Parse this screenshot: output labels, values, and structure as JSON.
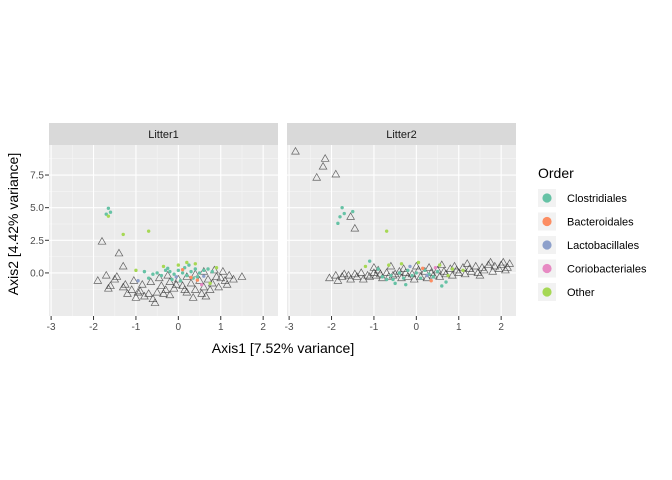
{
  "chart_data": {
    "type": "scatter",
    "xlabel": "Axis1 [7.52% variance]",
    "ylabel": "Axis2 [4.42% variance]",
    "xlim": [
      -3.05,
      2.35
    ],
    "ylim": [
      -3.3,
      9.8
    ],
    "x_ticks": [
      "-3",
      "-2",
      "-1",
      "0",
      "1",
      "2"
    ],
    "x_tick_values": [
      -3,
      -2,
      -1,
      0,
      1,
      2
    ],
    "y_ticks": [
      "0.0",
      "2.5",
      "5.0",
      "7.5"
    ],
    "y_tick_values": [
      0,
      2.5,
      5,
      7.5
    ],
    "grid": true,
    "legend": {
      "title": "Order",
      "placement": "right",
      "items": [
        {
          "label": "Clostridiales",
          "color": "#66c2a5"
        },
        {
          "label": "Bacteroidales",
          "color": "#fc8d62"
        },
        {
          "label": "Lactobacillales",
          "color": "#8da0cb"
        },
        {
          "label": "Coriobacteriales",
          "color": "#e78ac3"
        },
        {
          "label": "Other",
          "color": "#a6d854"
        }
      ]
    },
    "panels": [
      {
        "strip": "Litter1",
        "sample_points": [
          [
            -1.8,
            2.4
          ],
          [
            -1.4,
            1.5
          ],
          [
            -1.3,
            0.5
          ],
          [
            -1.7,
            -0.2
          ],
          [
            -1.5,
            -0.5
          ],
          [
            -1.6,
            -1.0
          ],
          [
            -1.3,
            -1.1
          ],
          [
            -1.1,
            -1.3
          ],
          [
            -0.9,
            -1.4
          ],
          [
            -0.7,
            -1.6
          ],
          [
            -0.5,
            -1.5
          ],
          [
            -0.3,
            -1.3
          ],
          [
            -0.1,
            -1.2
          ],
          [
            0.1,
            -1.0
          ],
          [
            0.3,
            -0.8
          ],
          [
            0.5,
            -0.6
          ],
          [
            0.7,
            -0.5
          ],
          [
            0.9,
            -0.3
          ],
          [
            1.0,
            -0.4
          ],
          [
            1.1,
            -0.6
          ],
          [
            0.8,
            -0.8
          ],
          [
            0.6,
            -1.1
          ],
          [
            0.4,
            -1.3
          ],
          [
            0.2,
            -1.5
          ],
          [
            -0.2,
            -1.7
          ],
          [
            -0.6,
            -2.0
          ],
          [
            -0.55,
            -2.3
          ],
          [
            -1.2,
            -1.6
          ],
          [
            -1.0,
            -1.9
          ],
          [
            -0.8,
            -1.8
          ],
          [
            -0.4,
            -1.0
          ],
          [
            -0.2,
            -0.7
          ],
          [
            0.0,
            -0.5
          ],
          [
            0.2,
            -0.3
          ],
          [
            0.4,
            -0.1
          ],
          [
            0.6,
            0.1
          ],
          [
            0.85,
            0.2
          ],
          [
            1.05,
            0.1
          ],
          [
            1.2,
            -0.2
          ],
          [
            1.5,
            -0.3
          ],
          [
            1.15,
            -0.9
          ],
          [
            0.95,
            -1.1
          ],
          [
            0.75,
            -1.3
          ],
          [
            0.55,
            -1.6
          ],
          [
            -1.45,
            -0.3
          ],
          [
            -1.25,
            -0.9
          ],
          [
            -1.05,
            -0.6
          ],
          [
            -0.85,
            -0.9
          ],
          [
            -0.65,
            -0.7
          ],
          [
            -0.45,
            -0.4
          ],
          [
            -0.25,
            -0.2
          ],
          [
            -1.9,
            -0.6
          ],
          [
            -1.65,
            -1.2
          ],
          [
            -0.95,
            -1.5
          ],
          [
            0.35,
            -1.9
          ],
          [
            0.65,
            -1.8
          ],
          [
            -0.05,
            -0.9
          ],
          [
            0.15,
            -1.3
          ],
          [
            -0.35,
            -1.6
          ],
          [
            1.3,
            -0.5
          ]
        ],
        "taxa_points": [
          {
            "x": -1.65,
            "y": 4.95,
            "order": "Clostridiales"
          },
          {
            "x": -1.6,
            "y": 4.65,
            "order": "Clostridiales"
          },
          {
            "x": -1.7,
            "y": 4.5,
            "order": "Clostridiales"
          },
          {
            "x": -1.65,
            "y": 4.35,
            "order": "Other"
          },
          {
            "x": -1.3,
            "y": 2.95,
            "order": "Other"
          },
          {
            "x": -0.7,
            "y": 3.2,
            "order": "Other"
          },
          {
            "x": -0.3,
            "y": 0.2,
            "order": "Clostridiales"
          },
          {
            "x": -0.2,
            "y": 0.1,
            "order": "Clostridiales"
          },
          {
            "x": -0.1,
            "y": -0.1,
            "order": "Clostridiales"
          },
          {
            "x": 0.0,
            "y": 0.2,
            "order": "Clostridiales"
          },
          {
            "x": 0.1,
            "y": 0.0,
            "order": "Clostridiales"
          },
          {
            "x": 0.2,
            "y": -0.2,
            "order": "Clostridiales"
          },
          {
            "x": 0.3,
            "y": 0.1,
            "order": "Clostridiales"
          },
          {
            "x": 0.4,
            "y": 0.3,
            "order": "Clostridiales"
          },
          {
            "x": 0.5,
            "y": 0.0,
            "order": "Clostridiales"
          },
          {
            "x": 0.6,
            "y": 0.2,
            "order": "Clostridiales"
          },
          {
            "x": 0.7,
            "y": 0.3,
            "order": "Clostridiales"
          },
          {
            "x": 0.8,
            "y": 0.1,
            "order": "Clostridiales"
          },
          {
            "x": -0.4,
            "y": -0.2,
            "order": "Clostridiales"
          },
          {
            "x": -0.5,
            "y": 0.0,
            "order": "Clostridiales"
          },
          {
            "x": -0.6,
            "y": -0.1,
            "order": "Clostridiales"
          },
          {
            "x": -0.7,
            "y": -0.4,
            "order": "Clostridiales"
          },
          {
            "x": 0.15,
            "y": 0.4,
            "order": "Clostridiales"
          },
          {
            "x": 0.35,
            "y": -0.4,
            "order": "Clostridiales"
          },
          {
            "x": -0.15,
            "y": -0.5,
            "order": "Clostridiales"
          },
          {
            "x": 0.05,
            "y": -0.6,
            "order": "Clostridiales"
          },
          {
            "x": 0.25,
            "y": 0.6,
            "order": "Clostridiales"
          },
          {
            "x": 0.45,
            "y": -0.3,
            "order": "Clostridiales"
          },
          {
            "x": -0.25,
            "y": 0.35,
            "order": "Clostridiales"
          },
          {
            "x": -0.8,
            "y": 0.1,
            "order": "Clostridiales"
          },
          {
            "x": 0.1,
            "y": 0.25,
            "order": "Bacteroidales"
          },
          {
            "x": 0.3,
            "y": -0.35,
            "order": "Bacteroidales"
          },
          {
            "x": 0.45,
            "y": -0.55,
            "order": "Bacteroidales"
          },
          {
            "x": -0.05,
            "y": -0.3,
            "order": "Lactobacillales"
          },
          {
            "x": 0.6,
            "y": -0.25,
            "order": "Lactobacillales"
          },
          {
            "x": -0.95,
            "y": -0.6,
            "order": "Lactobacillales"
          },
          {
            "x": 0.55,
            "y": -0.9,
            "order": "Coriobacteriales"
          },
          {
            "x": 0.2,
            "y": 0.8,
            "order": "Other"
          },
          {
            "x": 0.4,
            "y": 0.7,
            "order": "Other"
          },
          {
            "x": 0.0,
            "y": 0.6,
            "order": "Other"
          },
          {
            "x": 0.75,
            "y": -0.8,
            "order": "Other"
          },
          {
            "x": -1.0,
            "y": 0.2,
            "order": "Other"
          },
          {
            "x": 0.9,
            "y": 0.4,
            "order": "Other"
          },
          {
            "x": -0.35,
            "y": 0.5,
            "order": "Other"
          }
        ]
      },
      {
        "strip": "Litter2",
        "sample_points": [
          [
            -2.85,
            9.3
          ],
          [
            -2.15,
            8.75
          ],
          [
            -2.2,
            8.15
          ],
          [
            -1.9,
            7.55
          ],
          [
            -2.35,
            7.3
          ],
          [
            -1.55,
            4.3
          ],
          [
            -1.45,
            3.4
          ],
          [
            -1.9,
            -0.2
          ],
          [
            -2.05,
            -0.4
          ],
          [
            -1.75,
            -0.3
          ],
          [
            -1.6,
            -0.2
          ],
          [
            -1.45,
            -0.1
          ],
          [
            -1.3,
            0.0
          ],
          [
            -1.15,
            -0.2
          ],
          [
            -1.0,
            0.0
          ],
          [
            -0.85,
            -0.1
          ],
          [
            -0.7,
            0.0
          ],
          [
            -0.55,
            -0.2
          ],
          [
            -0.4,
            0.1
          ],
          [
            -0.25,
            0.0
          ],
          [
            -0.1,
            -0.1
          ],
          [
            0.05,
            0.2
          ],
          [
            0.2,
            0.1
          ],
          [
            0.35,
            0.0
          ],
          [
            0.5,
            0.2
          ],
          [
            0.65,
            0.1
          ],
          [
            0.8,
            0.3
          ],
          [
            0.95,
            0.2
          ],
          [
            1.1,
            0.4
          ],
          [
            1.25,
            0.3
          ],
          [
            1.4,
            0.5
          ],
          [
            1.55,
            0.4
          ],
          [
            1.7,
            0.6
          ],
          [
            1.85,
            0.5
          ],
          [
            2.0,
            0.6
          ],
          [
            2.15,
            0.4
          ],
          [
            2.2,
            0.7
          ],
          [
            2.1,
            0.2
          ],
          [
            1.95,
            0.3
          ],
          [
            1.8,
            0.1
          ],
          [
            1.6,
            0.2
          ],
          [
            1.45,
            0.0
          ],
          [
            1.3,
            0.1
          ],
          [
            1.15,
            -0.1
          ],
          [
            1.0,
            0.0
          ],
          [
            0.85,
            -0.2
          ],
          [
            0.7,
            -0.1
          ],
          [
            0.55,
            -0.3
          ],
          [
            0.4,
            -0.2
          ],
          [
            0.25,
            -0.4
          ],
          [
            0.1,
            -0.3
          ],
          [
            -0.05,
            -0.5
          ],
          [
            -0.2,
            -0.3
          ],
          [
            -0.35,
            -0.4
          ],
          [
            -0.5,
            -0.1
          ],
          [
            -0.65,
            -0.3
          ],
          [
            -0.8,
            -0.4
          ],
          [
            -0.95,
            -0.2
          ],
          [
            -1.1,
            -0.3
          ],
          [
            -1.25,
            -0.5
          ],
          [
            -1.4,
            -0.3
          ],
          [
            -1.55,
            -0.5
          ],
          [
            -1.7,
            -0.1
          ],
          [
            -1.85,
            -0.6
          ],
          [
            -1.0,
            0.4
          ],
          [
            -0.6,
            0.5
          ],
          [
            0.0,
            0.5
          ],
          [
            0.6,
            0.6
          ],
          [
            1.2,
            0.7
          ],
          [
            1.75,
            0.8
          ],
          [
            2.05,
            0.8
          ],
          [
            1.5,
            -0.2
          ],
          [
            0.9,
            0.5
          ],
          [
            0.3,
            0.4
          ],
          [
            -0.3,
            0.3
          ],
          [
            -0.9,
            0.2
          ]
        ],
        "taxa_points": [
          {
            "x": -1.75,
            "y": 5.0,
            "order": "Clostridiales"
          },
          {
            "x": -1.7,
            "y": 4.55,
            "order": "Clostridiales"
          },
          {
            "x": -1.5,
            "y": 4.7,
            "order": "Clostridiales"
          },
          {
            "x": -1.8,
            "y": 4.3,
            "order": "Clostridiales"
          },
          {
            "x": -1.85,
            "y": 3.8,
            "order": "Clostridiales"
          },
          {
            "x": -0.7,
            "y": 3.2,
            "order": "Other"
          },
          {
            "x": -1.1,
            "y": 0.9,
            "order": "Clostridiales"
          },
          {
            "x": -0.9,
            "y": 0.3,
            "order": "Clostridiales"
          },
          {
            "x": -0.7,
            "y": -0.5,
            "order": "Clostridiales"
          },
          {
            "x": -0.5,
            "y": -0.8,
            "order": "Clostridiales"
          },
          {
            "x": -0.3,
            "y": -0.4,
            "order": "Clostridiales"
          },
          {
            "x": -0.1,
            "y": -0.2,
            "order": "Clostridiales"
          },
          {
            "x": 0.1,
            "y": -0.4,
            "order": "Clostridiales"
          },
          {
            "x": 0.3,
            "y": -0.1,
            "order": "Clostridiales"
          },
          {
            "x": 0.5,
            "y": 0.1,
            "order": "Clostridiales"
          },
          {
            "x": -0.6,
            "y": -0.2,
            "order": "Clostridiales"
          },
          {
            "x": -0.4,
            "y": 0.0,
            "order": "Clostridiales"
          },
          {
            "x": -0.2,
            "y": 0.2,
            "order": "Clostridiales"
          },
          {
            "x": 0.0,
            "y": 0.0,
            "order": "Clostridiales"
          },
          {
            "x": 0.2,
            "y": 0.2,
            "order": "Clostridiales"
          },
          {
            "x": 0.4,
            "y": -0.3,
            "order": "Clostridiales"
          },
          {
            "x": -0.8,
            "y": -0.3,
            "order": "Clostridiales"
          },
          {
            "x": -0.55,
            "y": -0.5,
            "order": "Clostridiales"
          },
          {
            "x": 0.6,
            "y": -1.0,
            "order": "Clostridiales"
          },
          {
            "x": 0.7,
            "y": -0.7,
            "order": "Clostridiales"
          },
          {
            "x": -0.25,
            "y": -0.9,
            "order": "Clostridiales"
          },
          {
            "x": 0.15,
            "y": 0.35,
            "order": "Bacteroidales"
          },
          {
            "x": 0.35,
            "y": -0.6,
            "order": "Bacteroidales"
          },
          {
            "x": -0.15,
            "y": 0.5,
            "order": "Lactobacillales"
          },
          {
            "x": 0.25,
            "y": -0.2,
            "order": "Lactobacillales"
          },
          {
            "x": 0.45,
            "y": 0.4,
            "order": "Coriobacteriales"
          },
          {
            "x": -1.2,
            "y": 0.5,
            "order": "Other"
          },
          {
            "x": -0.65,
            "y": 0.6,
            "order": "Other"
          },
          {
            "x": 0.05,
            "y": 0.8,
            "order": "Other"
          },
          {
            "x": 0.55,
            "y": 0.6,
            "order": "Other"
          },
          {
            "x": 0.75,
            "y": -0.2,
            "order": "Other"
          },
          {
            "x": -0.35,
            "y": 0.7,
            "order": "Other"
          },
          {
            "x": 0.85,
            "y": 0.3,
            "order": "Other"
          },
          {
            "x": 1.1,
            "y": 0.2,
            "order": "Other"
          }
        ]
      }
    ]
  }
}
